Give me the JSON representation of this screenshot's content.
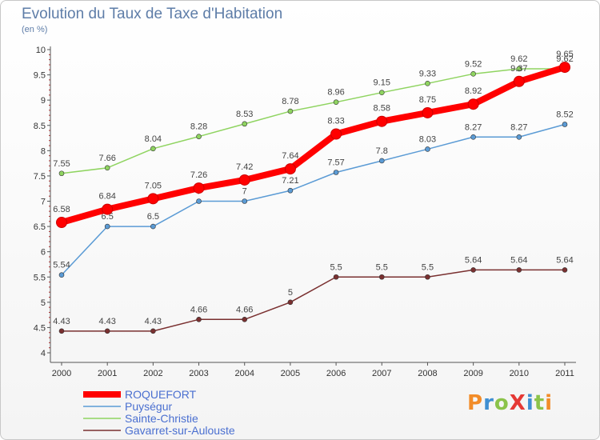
{
  "chart_data": {
    "type": "line",
    "title": "Evolution du Taux de Taxe d'Habitation",
    "subtitle": "(en %)",
    "x": [
      "2000",
      "2001",
      "2002",
      "2003",
      "2004",
      "2005",
      "2006",
      "2007",
      "2008",
      "2009",
      "2010",
      "2011"
    ],
    "ylim": [
      4,
      10
    ],
    "yticks": [
      "4",
      "4.5",
      "5",
      "5.5",
      "6",
      "6.5",
      "7",
      "7.5",
      "8",
      "8.5",
      "9",
      "9.5",
      "10"
    ],
    "grid": false,
    "legend_placement": "bottom-left",
    "series": [
      {
        "name": "ROQUEFORT",
        "color": "#ff0000",
        "values": [
          6.58,
          6.84,
          7.05,
          7.26,
          7.42,
          7.64,
          8.33,
          8.58,
          8.75,
          8.92,
          9.37,
          9.65
        ],
        "labels": [
          "6.58",
          "6.84",
          "7.05",
          "7.26",
          "7.42",
          "7.64",
          "8.33",
          "8.58",
          "8.75",
          "8.92",
          "9.37",
          "9.65"
        ]
      },
      {
        "name": "Puységur",
        "color": "#5b9bd5",
        "values": [
          5.54,
          6.5,
          6.5,
          7,
          7,
          7.21,
          7.57,
          7.8,
          8.03,
          8.27,
          8.27,
          8.52
        ],
        "labels": [
          "5.54",
          "6.5",
          "6.5",
          "7",
          "7",
          "7.21",
          "7.57",
          "7.8",
          "8.03",
          "8.27",
          "8.27",
          "8.52"
        ]
      },
      {
        "name": "Sainte-Christie",
        "color": "#8fd460",
        "values": [
          7.55,
          7.66,
          8.04,
          8.28,
          8.53,
          8.78,
          8.96,
          9.15,
          9.33,
          9.52,
          9.62,
          9.62
        ],
        "labels": [
          "7.55",
          "7.66",
          "8.04",
          "8.28",
          "8.53",
          "8.78",
          "8.96",
          "9.15",
          "9.33",
          "9.52",
          "9.62",
          "9.62"
        ]
      },
      {
        "name": "Gavarret-sur-Aulouste",
        "color": "#7a3030",
        "values": [
          4.43,
          4.43,
          4.43,
          4.66,
          4.66,
          5,
          5.5,
          5.5,
          5.5,
          5.64,
          5.64,
          5.64
        ],
        "labels": [
          "4.43",
          "4.43",
          "4.43",
          "4.66",
          "4.66",
          "5",
          "5.5",
          "5.5",
          "5.5",
          "5.64",
          "5.64",
          "5.64"
        ]
      }
    ]
  },
  "logo": {
    "text": "ProXiti"
  }
}
